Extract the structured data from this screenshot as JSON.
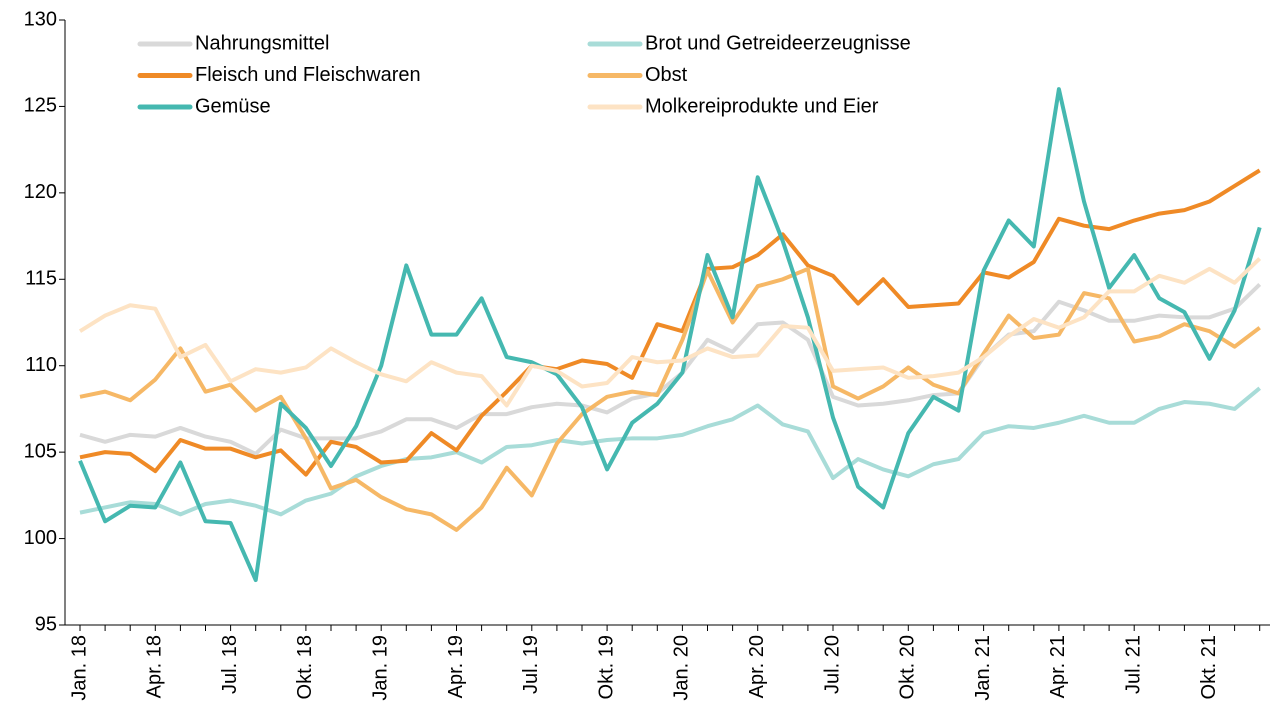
{
  "chart_data": {
    "type": "line",
    "categories": [
      "Jan. 18",
      null,
      null,
      "Apr. 18",
      null,
      null,
      "Jul. 18",
      null,
      null,
      "Okt. 18",
      null,
      null,
      "Jan. 19",
      null,
      null,
      "Apr. 19",
      null,
      null,
      "Jul. 19",
      null,
      null,
      "Okt. 19",
      null,
      null,
      "Jan. 20",
      null,
      null,
      "Apr. 20",
      null,
      null,
      "Jul. 20",
      null,
      null,
      "Okt. 20",
      null,
      null,
      "Jan. 21",
      null,
      null,
      "Apr. 21",
      null,
      null,
      "Jul. 21",
      null,
      null,
      "Okt. 21",
      null,
      null
    ],
    "series": [
      {
        "name": "Nahrungsmittel",
        "color": "#d9d9d9",
        "values": [
          106,
          105.6,
          106,
          105.9,
          106.4,
          105.9,
          105.6,
          104.9,
          106.3,
          105.8,
          105.8,
          105.8,
          106.2,
          106.9,
          106.9,
          106.4,
          107.2,
          107.2,
          107.6,
          107.8,
          107.7,
          107.3,
          108.1,
          108.4,
          109.6,
          111.5,
          110.8,
          112.4,
          112.5,
          111.5,
          108.2,
          107.7,
          107.8,
          108,
          108.3,
          108.4,
          110.5,
          111.8,
          112,
          113.7,
          113.2,
          112.6,
          112.6,
          112.9,
          112.8,
          112.8,
          113.3,
          114.7
        ]
      },
      {
        "name": "Brot und Getreideerzeugnisse",
        "color": "#a8dcd8",
        "values": [
          101.5,
          101.8,
          102.1,
          102,
          101.4,
          102,
          102.2,
          101.9,
          101.4,
          102.2,
          102.6,
          103.6,
          104.2,
          104.6,
          104.7,
          105,
          104.4,
          105.3,
          105.4,
          105.7,
          105.5,
          105.7,
          105.8,
          105.8,
          106,
          106.5,
          106.9,
          107.7,
          106.6,
          106.2,
          103.5,
          104.6,
          104,
          103.6,
          104.3,
          104.6,
          106.1,
          106.5,
          106.4,
          106.7,
          107.1,
          106.7,
          106.7,
          107.5,
          107.9,
          107.8,
          107.5,
          108.7
        ]
      },
      {
        "name": "Fleisch und Fleischwaren",
        "color": "#ef8a26",
        "values": [
          104.7,
          105,
          104.9,
          103.9,
          105.7,
          105.2,
          105.2,
          104.7,
          105.1,
          103.7,
          105.6,
          105.3,
          104.4,
          104.5,
          106.1,
          105.1,
          107.1,
          108.5,
          110,
          109.8,
          110.3,
          110.1,
          109.3,
          112.4,
          112,
          115.6,
          115.7,
          116.4,
          117.6,
          115.8,
          115.2,
          113.6,
          115,
          113.4,
          113.5,
          113.6,
          115.4,
          115.1,
          116,
          118.5,
          118.1,
          117.9,
          118.4,
          118.8,
          119,
          119.5,
          120.4,
          121.3
        ]
      },
      {
        "name": "Obst",
        "color": "#f6b866",
        "values": [
          108.2,
          108.5,
          108,
          109.2,
          111,
          108.5,
          108.9,
          107.4,
          108.2,
          105.8,
          102.9,
          103.4,
          102.4,
          101.7,
          101.4,
          100.5,
          101.8,
          104.1,
          102.5,
          105.5,
          107.2,
          108.2,
          108.5,
          108.3,
          111.5,
          115.5,
          112.5,
          114.6,
          115,
          115.6,
          108.8,
          108.1,
          108.8,
          109.9,
          108.9,
          108.4,
          110.7,
          112.9,
          111.6,
          111.8,
          114.2,
          113.9,
          111.4,
          111.7,
          112.4,
          112,
          111.1,
          112.2
        ]
      },
      {
        "name": "Gemüse",
        "color": "#45b8b0",
        "values": [
          104.5,
          101,
          101.9,
          101.8,
          104.4,
          101,
          100.9,
          97.6,
          107.8,
          106.4,
          104.2,
          106.5,
          110,
          115.8,
          111.8,
          111.8,
          113.9,
          110.5,
          110.2,
          109.5,
          107.6,
          104,
          106.7,
          107.8,
          109.6,
          116.4,
          112.8,
          120.9,
          117.2,
          112.8,
          107,
          103,
          101.8,
          106.1,
          108.2,
          107.4,
          115.5,
          118.4,
          116.9,
          126,
          119.5,
          114.5,
          116.4,
          113.9,
          113.1,
          110.4,
          113.2,
          118
        ]
      },
      {
        "name": "Molkereiprodukte und Eier",
        "color": "#fde3c4",
        "values": [
          112,
          112.9,
          113.5,
          113.3,
          110.5,
          111.2,
          109.1,
          109.8,
          109.6,
          109.9,
          111,
          110.2,
          109.5,
          109.1,
          110.2,
          109.6,
          109.4,
          107.7,
          110,
          109.7,
          108.8,
          109,
          110.5,
          110.2,
          110.3,
          111,
          110.5,
          110.6,
          112.3,
          112.2,
          109.7,
          109.8,
          109.9,
          109.3,
          109.4,
          109.6,
          110.5,
          111.7,
          112.7,
          112.2,
          112.8,
          114.3,
          114.3,
          115.2,
          114.8,
          115.6,
          114.8,
          116.2
        ]
      }
    ],
    "ylim": [
      95,
      130
    ],
    "yticks": [
      95,
      100,
      105,
      110,
      115,
      120,
      125,
      130
    ]
  }
}
